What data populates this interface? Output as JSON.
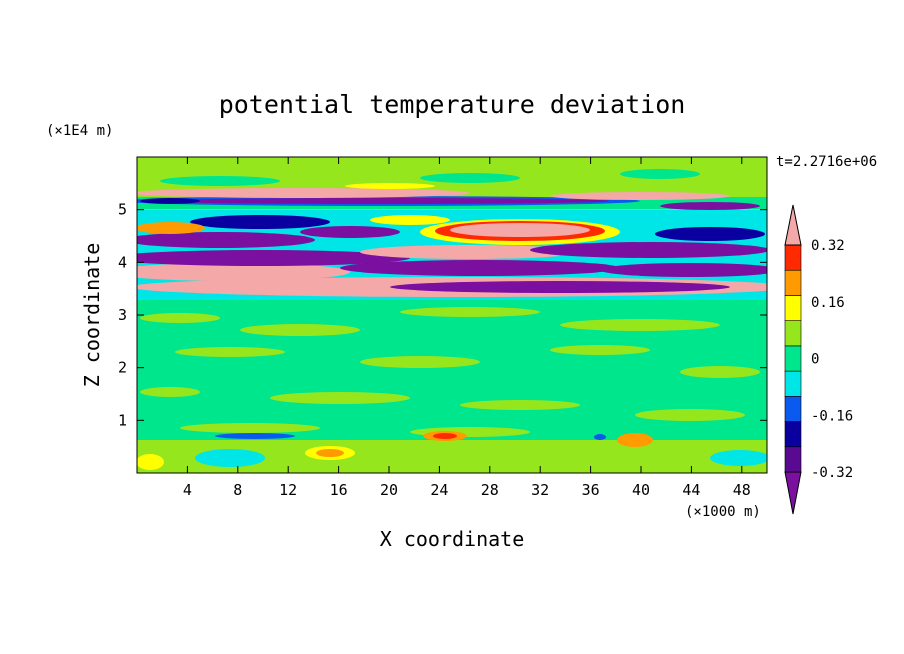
{
  "chart_data": {
    "type": "heatmap",
    "title": "potential temperature deviation",
    "xlabel": "X coordinate",
    "ylabel": "Z coordinate",
    "x_unit": "(×1000 m)",
    "y_unit": "(×1E4 m)",
    "time_label": "t=2.2716e+06",
    "xlim": [
      0,
      50
    ],
    "ylim": [
      0,
      6
    ],
    "x_ticks": [
      4,
      8,
      12,
      16,
      20,
      24,
      28,
      32,
      36,
      40,
      44,
      48
    ],
    "y_ticks": [
      1,
      2,
      3,
      4,
      5
    ],
    "colorbar": {
      "levels": [
        -0.4,
        -0.32,
        -0.24,
        -0.16,
        -0.08,
        0,
        0.08,
        0.16,
        0.24,
        0.32,
        0.4
      ],
      "labels": [
        "0.32",
        "0.16",
        "0",
        "-0.16",
        "-0.32"
      ],
      "label_values": [
        0.32,
        0.16,
        0,
        -0.16,
        -0.32
      ],
      "colors": [
        "#7a0fa0",
        "#5a0a90",
        "#0a00a0",
        "#0a5af0",
        "#00e6e6",
        "#00e68c",
        "#96e61e",
        "#ffff00",
        "#ff9a00",
        "#ff2a00",
        "#f4a8a8"
      ],
      "extend": "both"
    },
    "bands": [
      {
        "z_range": [
          0,
          0.8
        ],
        "description": "mostly near 0 with scattered +/-0.1 patches"
      },
      {
        "z_range": [
          0.8,
          3.3
        ],
        "description": "small fluctuations between -0.08 and +0.08"
      },
      {
        "z_range": [
          3.3,
          4.9
        ],
        "description": "strong alternating layers from below -0.4 to above +0.4"
      },
      {
        "z_range": [
          4.9,
          5.3
        ],
        "description": "thin layers of strong positive and negative deviation"
      },
      {
        "z_range": [
          5.3,
          6
        ],
        "description": "near 0 with weak positive deviation"
      }
    ]
  }
}
